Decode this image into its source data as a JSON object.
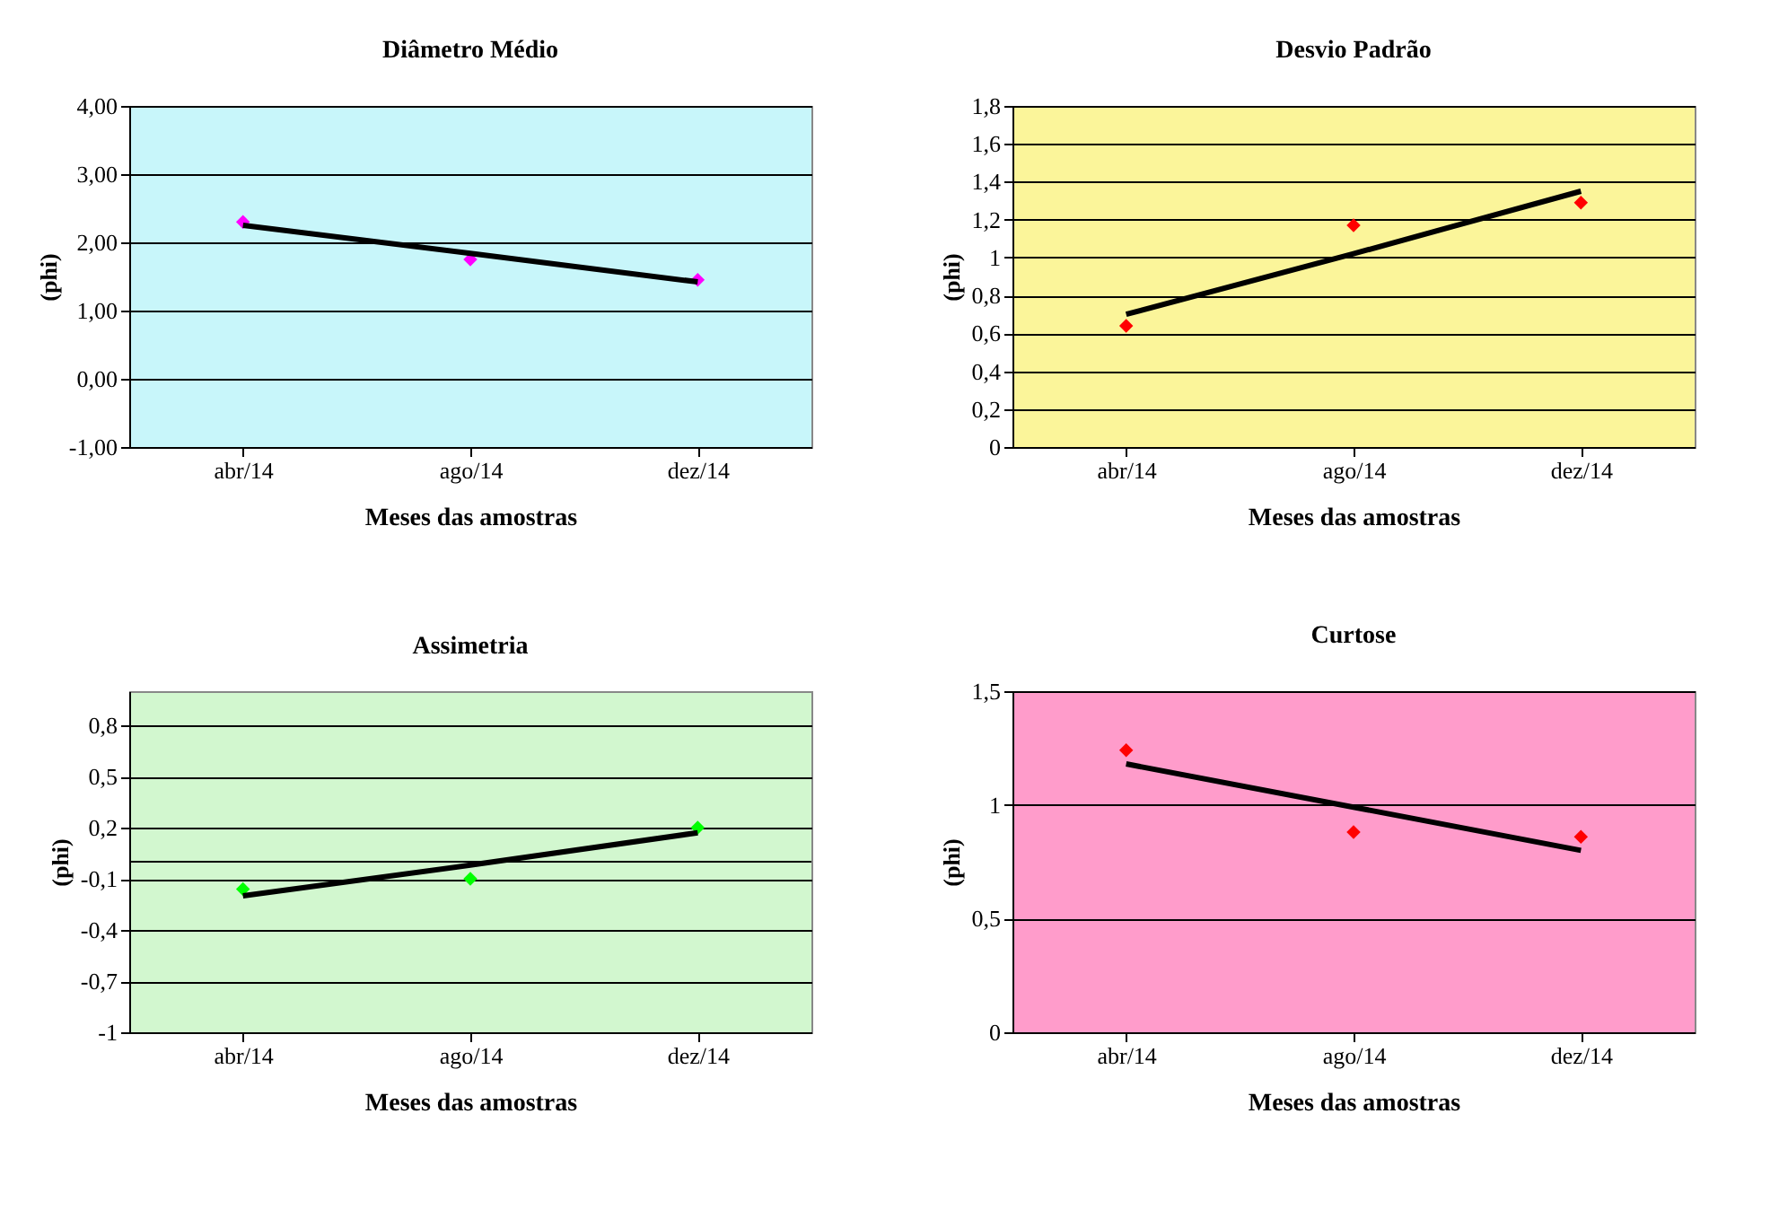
{
  "chart_data": [
    {
      "type": "scatter",
      "title": "Diâmetro Médio",
      "xlabel": "Meses das amostras",
      "ylabel": "(phi)",
      "categories": [
        "abr/14",
        "ago/14",
        "dez/14"
      ],
      "grid": "y",
      "ylim": [
        -1,
        4
      ],
      "yticks": [
        {
          "value": -1,
          "label": "-1,00"
        },
        {
          "value": 0,
          "label": "0,00"
        },
        {
          "value": 1,
          "label": "1,00"
        },
        {
          "value": 2,
          "label": "2,00"
        },
        {
          "value": 3,
          "label": "3,00"
        },
        {
          "value": 4,
          "label": "4,00"
        }
      ],
      "series": [
        {
          "color": "#ff00ff",
          "marker": "diamond",
          "values": [
            2.3,
            1.75,
            1.45
          ]
        },
        {
          "type": "line",
          "color": "#000000",
          "marker": "none",
          "line_style": "solid",
          "values": [
            2.25,
            1.84,
            1.42
          ]
        }
      ]
    },
    {
      "type": "scatter",
      "title": "Desvio Padrão",
      "xlabel": "Meses das amostras",
      "ylabel": "(phi)",
      "categories": [
        "abr/14",
        "ago/14",
        "dez/14"
      ],
      "grid": "y",
      "ylim": [
        0,
        1.8
      ],
      "yticks": [
        0,
        {
          "value": 0.2,
          "label": "0,2"
        },
        {
          "value": 0.4,
          "label": "0,4"
        },
        {
          "value": 0.6,
          "label": "0,6"
        },
        {
          "value": 0.8,
          "label": "0,8"
        },
        1,
        {
          "value": 1.2,
          "label": "1,2"
        },
        {
          "value": 1.4,
          "label": "1,4"
        },
        {
          "value": 1.6,
          "label": "1,6"
        },
        {
          "value": 1.8,
          "label": "1,8"
        }
      ],
      "series": [
        {
          "color": "#ff0000",
          "marker": "diamond",
          "values": [
            0.64,
            1.17,
            1.29
          ]
        },
        {
          "type": "line",
          "color": "#000000",
          "marker": "none",
          "line_style": "solid",
          "values": [
            0.7,
            1.02,
            1.35
          ]
        }
      ]
    },
    {
      "type": "scatter",
      "title": "Assimetria",
      "xlabel": "Meses das amostras",
      "ylabel": "(phi)",
      "categories": [
        "abr/14",
        "ago/14",
        "dez/14"
      ],
      "grid": "y",
      "ylim": [
        -1,
        1.0
      ],
      "yticks": [
        -1,
        {
          "value": -0.7,
          "label": "-0,7"
        },
        {
          "value": -0.4,
          "label": "-0,4"
        },
        {
          "value": -0.1,
          "label": "-0,1"
        },
        {
          "value": 0.2,
          "label": "0,2"
        },
        {
          "value": 0.5,
          "label": "0,5"
        },
        {
          "value": 0.8,
          "label": "0,8"
        }
      ],
      "ref_lines": [
        {
          "axis": "y",
          "value": 0,
          "color": "#000000"
        }
      ],
      "series": [
        {
          "color": "#00ff00",
          "marker": "diamond",
          "values": [
            -0.16,
            -0.1,
            0.2
          ]
        },
        {
          "type": "line",
          "color": "#000000",
          "marker": "none",
          "line_style": "solid",
          "values": [
            -0.2,
            -0.02,
            0.17
          ]
        }
      ]
    },
    {
      "type": "scatter",
      "title": "Curtose",
      "xlabel": "Meses das amostras",
      "ylabel": "(phi)",
      "categories": [
        "abr/14",
        "ago/14",
        "dez/14"
      ],
      "grid": "y",
      "ylim": [
        0,
        1.5
      ],
      "yticks": [
        0,
        {
          "value": 0.5,
          "label": "0,5"
        },
        1,
        {
          "value": 1.5,
          "label": "1,5"
        }
      ],
      "series": [
        {
          "color": "#ff0000",
          "marker": "diamond",
          "values": [
            1.24,
            0.88,
            0.86
          ]
        },
        {
          "type": "line",
          "color": "#000000",
          "marker": "none",
          "line_style": "solid",
          "values": [
            1.18,
            0.99,
            0.8
          ]
        }
      ]
    }
  ]
}
